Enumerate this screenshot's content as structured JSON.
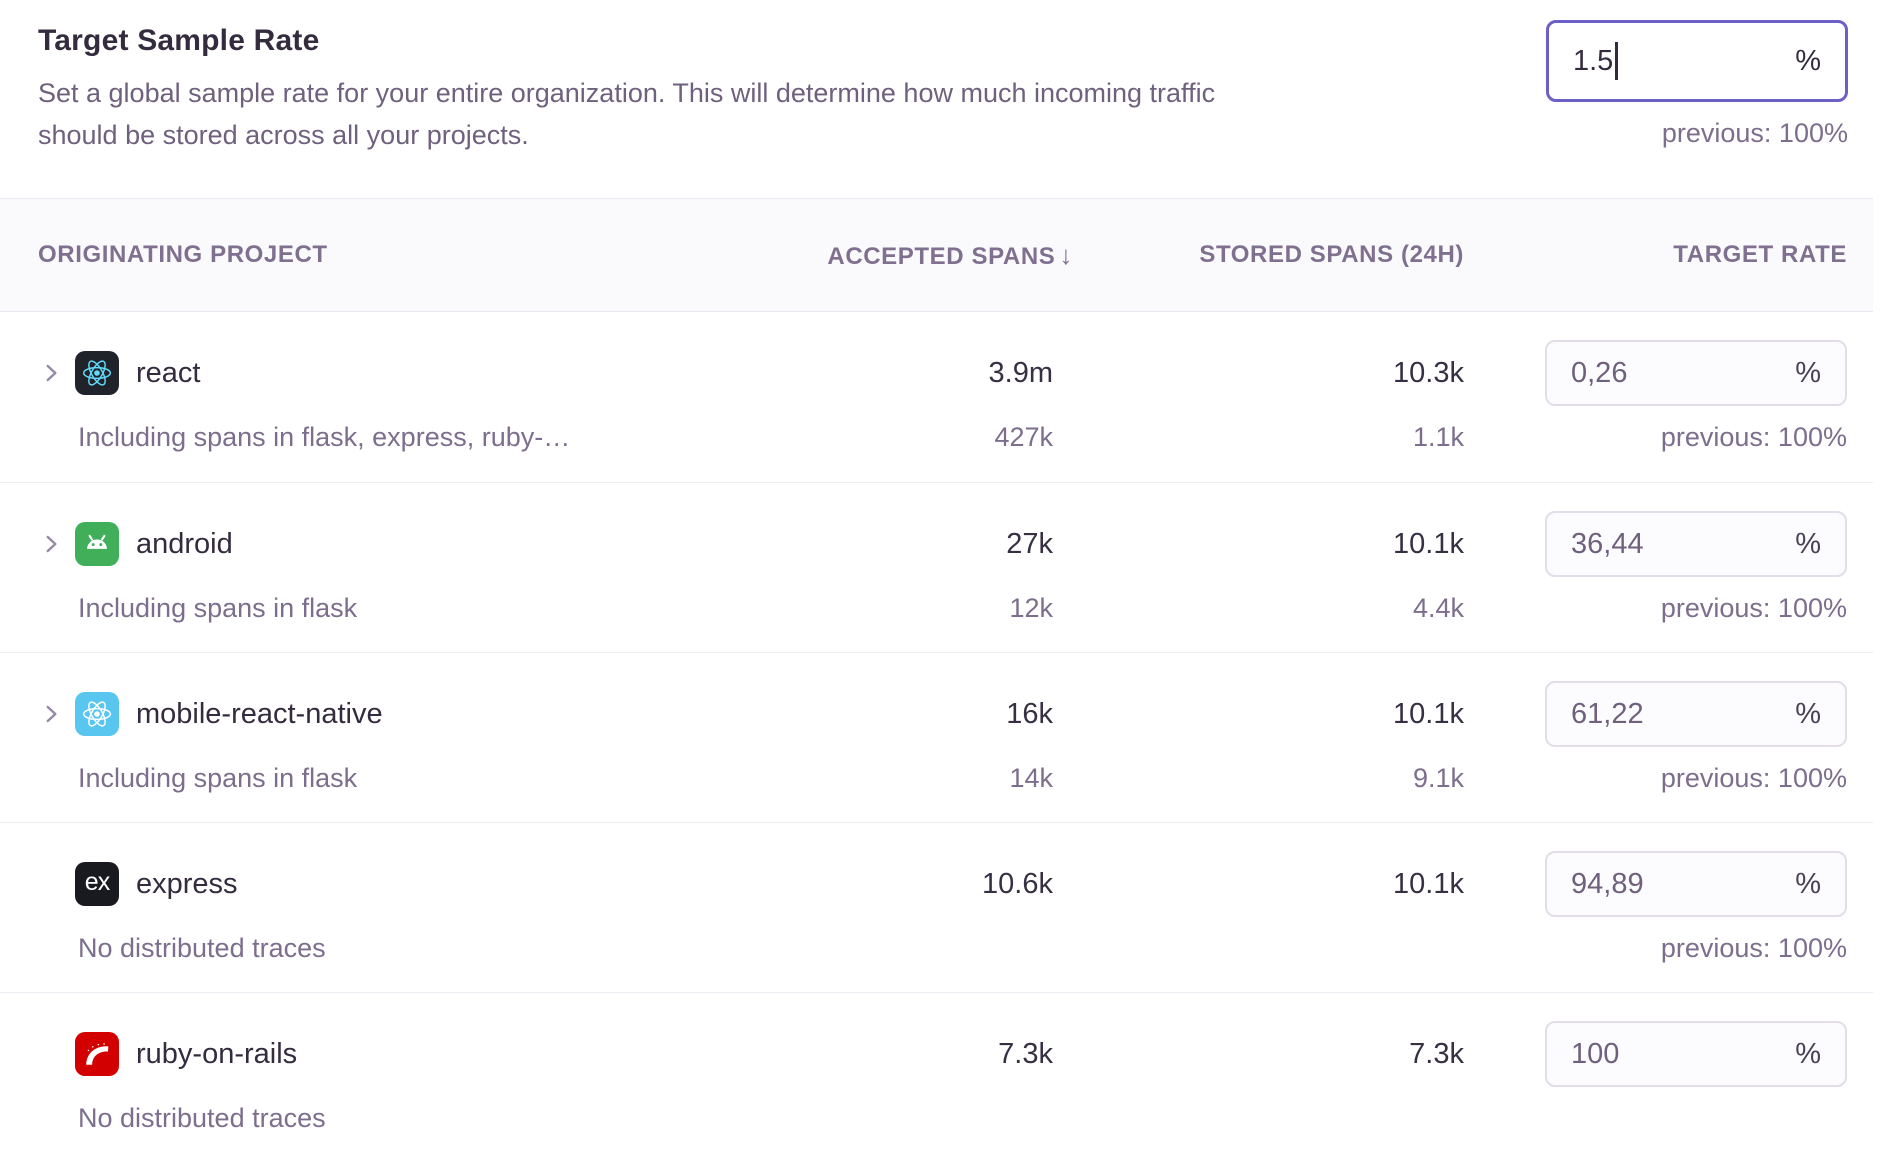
{
  "header": {
    "title": "Target Sample Rate",
    "description_lines": [
      "Set a global sample rate for your entire organization. This will determine how much incoming traffic",
      "should be stored across all your projects."
    ],
    "rate_input": {
      "value": "1.5",
      "unit": "%"
    },
    "previous_label": "previous: 100%"
  },
  "table": {
    "percent_unit": "%",
    "columns": {
      "project": "ORIGINATING PROJECT",
      "accepted": "ACCEPTED SPANS",
      "sort_arrow": "↓",
      "stored": "STORED SPANS (24H)",
      "target": "TARGET RATE"
    },
    "rows": [
      {
        "name": "react",
        "platform": "react",
        "expandable": true,
        "subtext": "Including spans in flask, express, ruby-…",
        "accepted": "3.9m",
        "accepted_sub": "427k",
        "stored": "10.3k",
        "stored_sub": "1.1k",
        "rate": "0,26",
        "previous": "previous: 100%"
      },
      {
        "name": "android",
        "platform": "android",
        "expandable": true,
        "subtext": "Including spans in flask",
        "accepted": "27k",
        "accepted_sub": "12k",
        "stored": "10.1k",
        "stored_sub": "4.4k",
        "rate": "36,44",
        "previous": "previous: 100%"
      },
      {
        "name": "mobile-react-native",
        "platform": "react-native",
        "expandable": true,
        "subtext": "Including spans in flask",
        "accepted": "16k",
        "accepted_sub": "14k",
        "stored": "10.1k",
        "stored_sub": "9.1k",
        "rate": "61,22",
        "previous": "previous: 100%"
      },
      {
        "name": "express",
        "platform": "express",
        "expandable": false,
        "subtext": "No distributed traces",
        "accepted": "10.6k",
        "accepted_sub": null,
        "stored": "10.1k",
        "stored_sub": null,
        "rate": "94,89",
        "previous": "previous: 100%"
      },
      {
        "name": "ruby-on-rails",
        "platform": "rails",
        "expandable": false,
        "subtext": "No distributed traces",
        "accepted": "7.3k",
        "accepted_sub": null,
        "stored": "7.3k",
        "stored_sub": null,
        "rate": "100",
        "previous": null
      }
    ]
  },
  "icons": {
    "express_glyph": "ex",
    "colors": {
      "react_bg": "#20232a",
      "react_fg": "#61dafb",
      "android_bg": "#41af5a",
      "react_native_bg": "#59c6f0",
      "express_bg": "#191920",
      "rails_bg": "#d30001",
      "accent_purple": "#6d5fc8"
    }
  }
}
